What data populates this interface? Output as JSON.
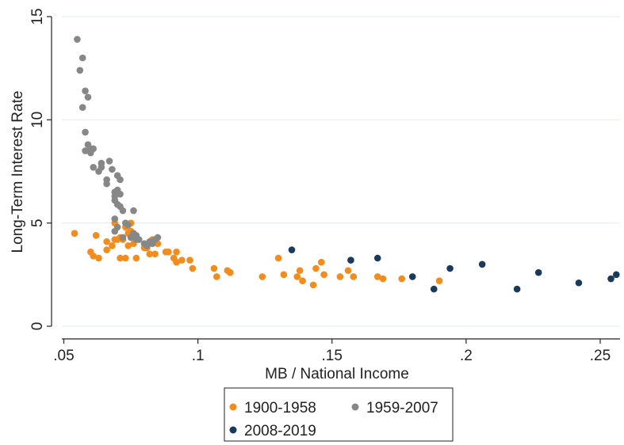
{
  "chart_data": {
    "type": "scatter",
    "title": "",
    "xlabel": "MB / National Income",
    "ylabel": "Long-Term Interest Rate",
    "xlim": [
      0.05,
      0.26
    ],
    "ylim": [
      0,
      15
    ],
    "xticks": [
      {
        "value": 0.05,
        "label": ".05"
      },
      {
        "value": 0.1,
        "label": ".1"
      },
      {
        "value": 0.15,
        "label": ".15"
      },
      {
        "value": 0.2,
        "label": ".2"
      },
      {
        "value": 0.25,
        "label": ".25"
      }
    ],
    "yticks": [
      {
        "value": 0,
        "label": "0"
      },
      {
        "value": 5,
        "label": "5"
      },
      {
        "value": 10,
        "label": "10"
      },
      {
        "value": 15,
        "label": "15"
      }
    ],
    "grid": true,
    "legend_position": "bottom",
    "series": [
      {
        "name": "1900-1958",
        "color": "#f28c1c",
        "points": [
          [
            0.054,
            4.5
          ],
          [
            0.06,
            3.6
          ],
          [
            0.061,
            3.4
          ],
          [
            0.062,
            4.4
          ],
          [
            0.063,
            3.3
          ],
          [
            0.066,
            3.7
          ],
          [
            0.066,
            4.1
          ],
          [
            0.068,
            3.9
          ],
          [
            0.069,
            4.2
          ],
          [
            0.069,
            5.0
          ],
          [
            0.07,
            4.2
          ],
          [
            0.071,
            4.3
          ],
          [
            0.071,
            3.3
          ],
          [
            0.072,
            4.2
          ],
          [
            0.073,
            3.3
          ],
          [
            0.073,
            4.8
          ],
          [
            0.074,
            4.5
          ],
          [
            0.074,
            3.9
          ],
          [
            0.075,
            5.0
          ],
          [
            0.075,
            4.6
          ],
          [
            0.076,
            4.0
          ],
          [
            0.077,
            3.3
          ],
          [
            0.078,
            4.2
          ],
          [
            0.08,
            3.8
          ],
          [
            0.081,
            3.8
          ],
          [
            0.082,
            3.5
          ],
          [
            0.083,
            4.2
          ],
          [
            0.084,
            3.5
          ],
          [
            0.085,
            4.0
          ],
          [
            0.088,
            3.6
          ],
          [
            0.089,
            3.6
          ],
          [
            0.091,
            3.3
          ],
          [
            0.092,
            3.6
          ],
          [
            0.092,
            3.1
          ],
          [
            0.094,
            3.2
          ],
          [
            0.097,
            3.2
          ],
          [
            0.098,
            2.8
          ],
          [
            0.106,
            2.8
          ],
          [
            0.107,
            2.4
          ],
          [
            0.111,
            2.7
          ],
          [
            0.112,
            2.6
          ],
          [
            0.112,
            2.6
          ],
          [
            0.124,
            2.4
          ],
          [
            0.13,
            3.3
          ],
          [
            0.132,
            2.5
          ],
          [
            0.137,
            2.4
          ],
          [
            0.138,
            2.7
          ],
          [
            0.139,
            2.2
          ],
          [
            0.143,
            2.0
          ],
          [
            0.144,
            2.8
          ],
          [
            0.146,
            3.1
          ],
          [
            0.147,
            2.5
          ],
          [
            0.153,
            2.4
          ],
          [
            0.156,
            2.7
          ],
          [
            0.158,
            2.4
          ],
          [
            0.167,
            2.4
          ],
          [
            0.169,
            2.3
          ],
          [
            0.176,
            2.3
          ],
          [
            0.19,
            2.2
          ]
        ]
      },
      {
        "name": "1959-2007",
        "color": "#878787",
        "points": [
          [
            0.055,
            13.9
          ],
          [
            0.056,
            12.4
          ],
          [
            0.057,
            13.0
          ],
          [
            0.057,
            10.6
          ],
          [
            0.058,
            11.4
          ],
          [
            0.059,
            11.1
          ],
          [
            0.058,
            9.4
          ],
          [
            0.058,
            8.5
          ],
          [
            0.059,
            8.8
          ],
          [
            0.06,
            8.4
          ],
          [
            0.06,
            8.6
          ],
          [
            0.061,
            8.6
          ],
          [
            0.061,
            7.7
          ],
          [
            0.063,
            7.5
          ],
          [
            0.064,
            7.9
          ],
          [
            0.064,
            7.7
          ],
          [
            0.066,
            7.1
          ],
          [
            0.066,
            6.9
          ],
          [
            0.067,
            8.0
          ],
          [
            0.068,
            7.6
          ],
          [
            0.069,
            6.3
          ],
          [
            0.069,
            6.5
          ],
          [
            0.069,
            6.1
          ],
          [
            0.07,
            6.6
          ],
          [
            0.07,
            7.3
          ],
          [
            0.07,
            5.9
          ],
          [
            0.071,
            7.1
          ],
          [
            0.071,
            6.4
          ],
          [
            0.071,
            5.8
          ],
          [
            0.072,
            5.6
          ],
          [
            0.069,
            5.2
          ],
          [
            0.069,
            4.6
          ],
          [
            0.07,
            4.8
          ],
          [
            0.072,
            4.3
          ],
          [
            0.073,
            5.0
          ],
          [
            0.074,
            4.9
          ],
          [
            0.075,
            4.3
          ],
          [
            0.076,
            5.6
          ],
          [
            0.076,
            4.5
          ],
          [
            0.077,
            4.2
          ],
          [
            0.077,
            4.4
          ],
          [
            0.078,
            4.2
          ],
          [
            0.08,
            4.0
          ],
          [
            0.081,
            3.9
          ],
          [
            0.082,
            4.1
          ],
          [
            0.083,
            4.0
          ],
          [
            0.084,
            4.2
          ],
          [
            0.085,
            4.3
          ]
        ]
      },
      {
        "name": "2008-2019",
        "color": "#1a3a5c",
        "points": [
          [
            0.135,
            3.7
          ],
          [
            0.157,
            3.2
          ],
          [
            0.167,
            3.3
          ],
          [
            0.18,
            2.4
          ],
          [
            0.188,
            1.8
          ],
          [
            0.194,
            2.8
          ],
          [
            0.206,
            3.0
          ],
          [
            0.219,
            1.8
          ],
          [
            0.227,
            2.6
          ],
          [
            0.242,
            2.1
          ],
          [
            0.254,
            2.3
          ],
          [
            0.256,
            2.5
          ]
        ]
      }
    ]
  }
}
